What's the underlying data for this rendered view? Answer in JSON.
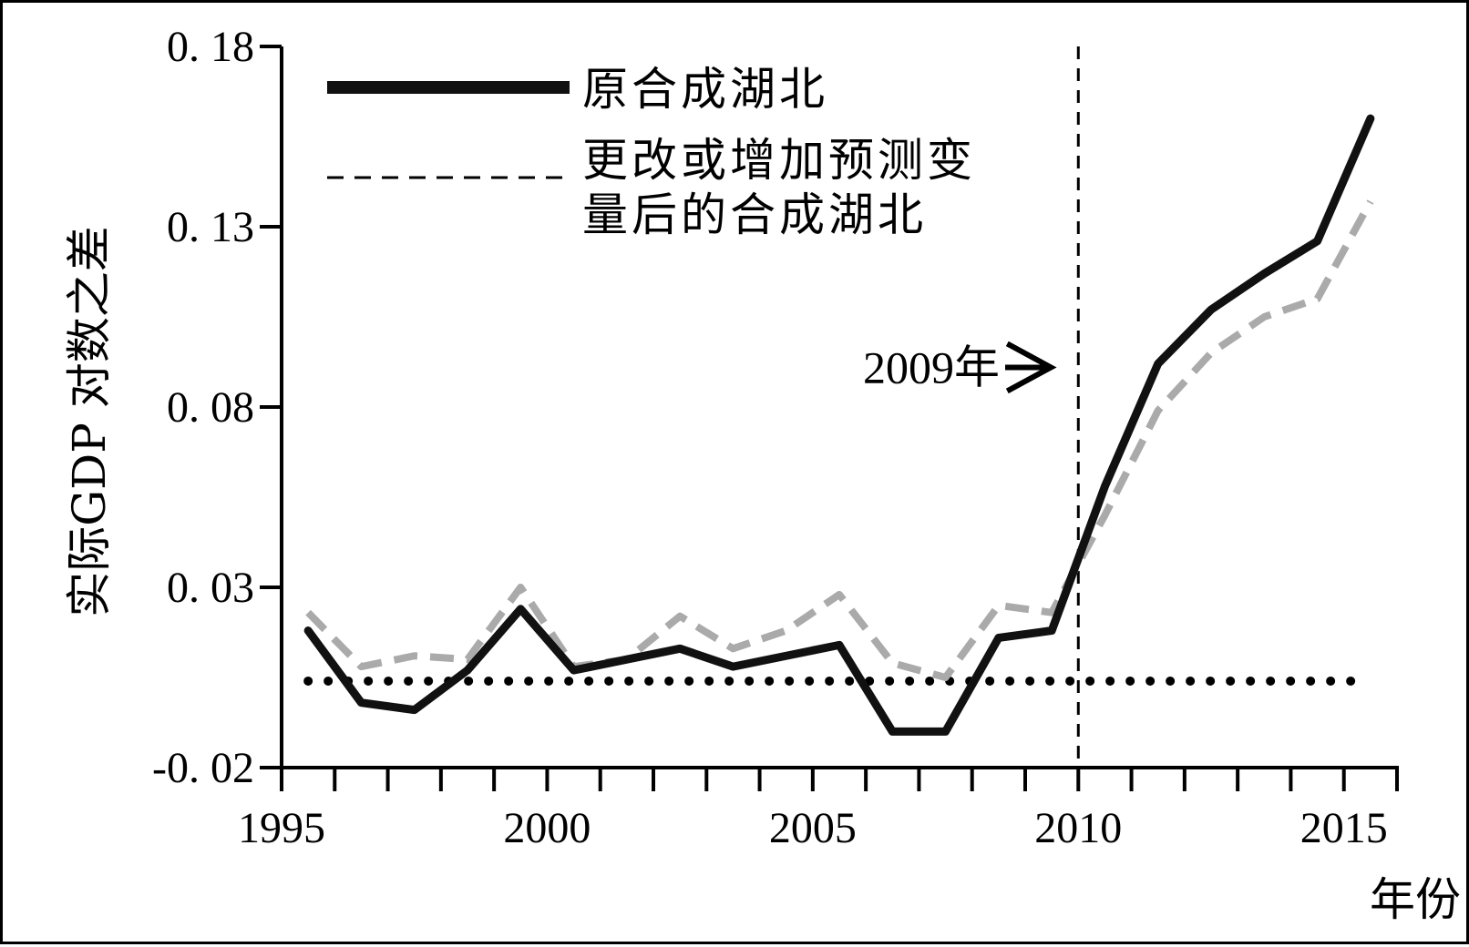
{
  "chart_data": {
    "type": "line",
    "title": "",
    "xlabel": "年份",
    "ylabel": "实际GDP 对数之差",
    "xlim": [
      1995,
      2016
    ],
    "ylim": [
      -0.02,
      0.18
    ],
    "x_ticks": [
      1995,
      2000,
      2005,
      2010,
      2015
    ],
    "y_ticks": [
      -0.02,
      0.03,
      0.08,
      0.13,
      0.18
    ],
    "y_tick_labels": [
      "-0. 02",
      "0. 03",
      "0. 08",
      "0. 13",
      "0. 18"
    ],
    "x_tick_labels": [
      "1995",
      "2000",
      "2005",
      "2010",
      "2015"
    ],
    "legend_position": "top-left",
    "series": [
      {
        "name": "原合成湖北",
        "style": "solid",
        "color": "#111111",
        "x": [
          1995.5,
          1996.5,
          1997.5,
          1998.5,
          1999.5,
          2000.5,
          2001.5,
          2002.5,
          2003.5,
          2004.5,
          2005.5,
          2006.5,
          2007.5,
          2008.5,
          2009.5,
          2010.5,
          2011.5,
          2012.5,
          2013.5,
          2014.5,
          2015.5
        ],
        "values": [
          0.018,
          -0.002,
          -0.004,
          0.007,
          0.024,
          0.007,
          0.01,
          0.013,
          0.008,
          0.011,
          0.014,
          -0.01,
          -0.01,
          0.016,
          0.018,
          0.058,
          0.092,
          0.107,
          0.117,
          0.126,
          0.16
        ]
      },
      {
        "name": "更改或增加预测变量后的合成湖北",
        "legend_lines": [
          "更改或增加预测变",
          "量后的合成湖北"
        ],
        "style": "dashed",
        "color": "#aaaaaa",
        "x": [
          1995.5,
          1996.5,
          1997.5,
          1998.5,
          1999.5,
          2000.5,
          2001.5,
          2002.5,
          2003.5,
          2004.5,
          2005.5,
          2006.5,
          2007.5,
          2008.5,
          2009.5,
          2010.5,
          2011.5,
          2012.5,
          2013.5,
          2014.5,
          2015.5
        ],
        "values": [
          0.023,
          0.008,
          0.011,
          0.01,
          0.03,
          0.008,
          0.01,
          0.022,
          0.013,
          0.018,
          0.028,
          0.009,
          0.005,
          0.025,
          0.023,
          0.05,
          0.079,
          0.095,
          0.105,
          0.11,
          0.137
        ]
      }
    ],
    "reference_line": {
      "style": "dotted",
      "y": 0.004,
      "x_start": 1995.5,
      "x_end": 2015.5
    },
    "vertical_marker": {
      "style": "dashed",
      "x": 2010.0
    },
    "annotation": {
      "text": "2009年",
      "points_to_x": 2010.0,
      "y": 0.091
    }
  },
  "colors": {
    "solid": "#111111",
    "dashed": "#aaaaaa",
    "axis": "#000000"
  }
}
